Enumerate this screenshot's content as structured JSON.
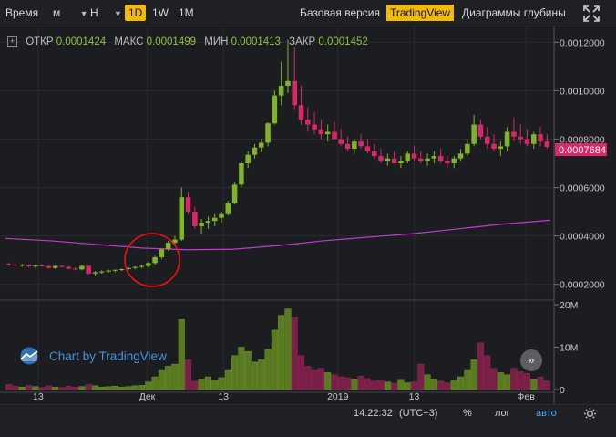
{
  "toolbar": {
    "time_label": "Время",
    "interval_min": "м",
    "interval_hour": "Н",
    "interval_1d": "1D",
    "interval_1w": "1W",
    "interval_1m": "1M",
    "basic_version": "Базовая версия",
    "tradingview": "TradingView",
    "depth_charts": "Диаграммы глубины",
    "fullscreen_icon": "fullscreen-icon"
  },
  "ohlc": {
    "open_label": "ОТКР",
    "open": "0.0001424",
    "high_label": "МАКС",
    "high": "0.0001499",
    "low_label": "МИН",
    "low": "0.0001413",
    "close_label": "ЗАКР",
    "close": "0.0001452"
  },
  "price_axis": [
    "0.0012000",
    "0.0010000",
    "0.0008000",
    "0.0006000",
    "0.0004000",
    "0.0002000"
  ],
  "last_price": "0.0007684",
  "volume_axis": [
    "20M",
    "10M",
    "0"
  ],
  "time_axis": [
    "13",
    "Дек",
    "13",
    "2019",
    "13",
    "Фев"
  ],
  "watermark": "Chart by TradingView",
  "bottombar": {
    "time": "14:22:32",
    "tz": "(UTC+3)",
    "percent": "%",
    "log": "лог",
    "auto": "авто"
  },
  "colors": {
    "up": "#7fb32a",
    "down": "#d6286a",
    "ma": "#c03ad0",
    "accent": "#f0b90b"
  },
  "chart_data": {
    "type": "candlestick",
    "ylim": [
      0.00015,
      0.00125
    ],
    "ma_series": [
      0.00039,
      0.00038,
      0.000365,
      0.00035,
      0.000343,
      0.000345,
      0.00036,
      0.00038,
      0.000395,
      0.00041,
      0.00043,
      0.00045,
      0.000465
    ],
    "candles": [
      [
        0.000285,
        0.00029,
        0.000278,
        0.000282
      ],
      [
        0.000282,
        0.000286,
        0.000276,
        0.000279
      ],
      [
        0.000279,
        0.000285,
        0.000272,
        0.000281
      ],
      [
        0.000281,
        0.000284,
        0.00027,
        0.000274
      ],
      [
        0.000274,
        0.000281,
        0.000268,
        0.000278
      ],
      [
        0.000278,
        0.000283,
        0.000273,
        0.000275
      ],
      [
        0.000275,
        0.000279,
        0.000265,
        0.000268
      ],
      [
        0.000268,
        0.000278,
        0.000263,
        0.000276
      ],
      [
        0.000276,
        0.00028,
        0.00027,
        0.000272
      ],
      [
        0.000272,
        0.000276,
        0.000262,
        0.000265
      ],
      [
        0.000265,
        0.00027,
        0.000258,
        0.000262
      ],
      [
        0.000262,
        0.00028,
        0.000258,
        0.000276
      ],
      [
        0.000276,
        0.00028,
        0.00024,
        0.000245
      ],
      [
        0.000245,
        0.000255,
        0.000236,
        0.00025
      ],
      [
        0.00025,
        0.000258,
        0.000244,
        0.000253
      ],
      [
        0.000253,
        0.000261,
        0.000248,
        0.000257
      ],
      [
        0.000257,
        0.000262,
        0.00025,
        0.00026
      ],
      [
        0.00026,
        0.000266,
        0.000255,
        0.000263
      ],
      [
        0.000263,
        0.000271,
        0.000258,
        0.000268
      ],
      [
        0.000268,
        0.000275,
        0.000262,
        0.000272
      ],
      [
        0.000272,
        0.00028,
        0.000266,
        0.000276
      ],
      [
        0.000276,
        0.000292,
        0.00027,
        0.000288
      ],
      [
        0.000288,
        0.000318,
        0.000282,
        0.000312
      ],
      [
        0.000312,
        0.00035,
        0.000305,
        0.000345
      ],
      [
        0.000345,
        0.00038,
        0.000338,
        0.000372
      ],
      [
        0.000372,
        0.0004,
        0.000362,
        0.000385
      ],
      [
        0.000385,
        0.0006,
        0.00038,
        0.00056
      ],
      [
        0.00056,
        0.00058,
        0.00049,
        0.0005
      ],
      [
        0.0005,
        0.00052,
        0.00043,
        0.00044
      ],
      [
        0.00044,
        0.00047,
        0.00041,
        0.000455
      ],
      [
        0.000455,
        0.00048,
        0.00043,
        0.000462
      ],
      [
        0.000462,
        0.00049,
        0.00044,
        0.000475
      ],
      [
        0.000475,
        0.0005,
        0.000455,
        0.00049
      ],
      [
        0.00049,
        0.000545,
        0.000485,
        0.000535
      ],
      [
        0.000535,
        0.00062,
        0.00053,
        0.000612
      ],
      [
        0.000612,
        0.00071,
        0.0006,
        0.0007
      ],
      [
        0.0007,
        0.00075,
        0.00068,
        0.000735
      ],
      [
        0.000735,
        0.00078,
        0.00072,
        0.000765
      ],
      [
        0.000765,
        0.0008,
        0.000745,
        0.000785
      ],
      [
        0.000785,
        0.00087,
        0.00077,
        0.000865
      ],
      [
        0.000865,
        0.001,
        0.00086,
        0.00098
      ],
      [
        0.00098,
        0.00112,
        0.00094,
        0.00102
      ],
      [
        0.00102,
        0.00121,
        0.00099,
        0.00104
      ],
      [
        0.00104,
        0.00118,
        0.00092,
        0.00094
      ],
      [
        0.00094,
        0.00102,
        0.00086,
        0.00088
      ],
      [
        0.00088,
        0.00093,
        0.00083,
        0.00086
      ],
      [
        0.00086,
        0.00091,
        0.00082,
        0.00084
      ],
      [
        0.00084,
        0.00088,
        0.0008,
        0.00082
      ],
      [
        0.00082,
        0.00086,
        0.00079,
        0.00083
      ],
      [
        0.00083,
        0.00087,
        0.0008,
        0.0008
      ],
      [
        0.0008,
        0.00084,
        0.00077,
        0.00078
      ],
      [
        0.00078,
        0.00081,
        0.00075,
        0.00076
      ],
      [
        0.00076,
        0.0008,
        0.00074,
        0.00079
      ],
      [
        0.00079,
        0.00082,
        0.00076,
        0.00077
      ],
      [
        0.00077,
        0.0008,
        0.00074,
        0.00075
      ],
      [
        0.00075,
        0.00078,
        0.00072,
        0.00073
      ],
      [
        0.00073,
        0.00076,
        0.0007,
        0.00071
      ],
      [
        0.00071,
        0.00074,
        0.00069,
        0.00072
      ],
      [
        0.00072,
        0.00075,
        0.0007,
        0.0007
      ],
      [
        0.0007,
        0.00073,
        0.00068,
        0.00071
      ],
      [
        0.00071,
        0.00075,
        0.0007,
        0.00074
      ],
      [
        0.00074,
        0.00077,
        0.00071,
        0.00072
      ],
      [
        0.00072,
        0.00075,
        0.0007,
        0.00071
      ],
      [
        0.00071,
        0.00074,
        0.00069,
        0.00072
      ],
      [
        0.00072,
        0.00075,
        0.0007,
        0.00073
      ],
      [
        0.00073,
        0.00076,
        0.0007,
        0.00071
      ],
      [
        0.00071,
        0.00073,
        0.00068,
        0.0007
      ],
      [
        0.0007,
        0.00073,
        0.00068,
        0.00072
      ],
      [
        0.00072,
        0.00076,
        0.00071,
        0.00074
      ],
      [
        0.00074,
        0.0008,
        0.00073,
        0.00078
      ],
      [
        0.00078,
        0.0009,
        0.00077,
        0.00086
      ],
      [
        0.00086,
        0.00088,
        0.0008,
        0.00081
      ],
      [
        0.00081,
        0.00085,
        0.00076,
        0.00078
      ],
      [
        0.00078,
        0.00082,
        0.00075,
        0.00076
      ],
      [
        0.00076,
        0.00079,
        0.00073,
        0.00077
      ],
      [
        0.00077,
        0.00085,
        0.00075,
        0.00083
      ],
      [
        0.00083,
        0.00089,
        0.00079,
        0.00081
      ],
      [
        0.00081,
        0.00086,
        0.00078,
        0.0008
      ],
      [
        0.0008,
        0.00084,
        0.00077,
        0.00078
      ],
      [
        0.00078,
        0.00083,
        0.00076,
        0.00082
      ],
      [
        0.00082,
        0.00085,
        0.00077,
        0.00079
      ],
      [
        0.00079,
        0.00082,
        0.00076,
        0.000768
      ]
    ],
    "volumes": [
      1.2,
      0.8,
      0.6,
      1.0,
      0.7,
      0.5,
      0.9,
      0.6,
      0.5,
      0.8,
      0.6,
      0.7,
      1.2,
      0.9,
      0.6,
      0.7,
      0.8,
      0.6,
      0.7,
      0.9,
      1.0,
      1.8,
      3.0,
      4.5,
      5.5,
      6.0,
      16.5,
      7.0,
      2.0,
      2.5,
      3.0,
      2.2,
      2.8,
      4.5,
      8.0,
      10.0,
      9.0,
      6.5,
      7.0,
      9.5,
      14.0,
      17.5,
      19.0,
      17.0,
      8.0,
      5.5,
      4.5,
      5.0,
      4.0,
      3.5,
      3.0,
      2.8,
      2.5,
      3.2,
      2.6,
      2.0,
      2.2,
      1.8,
      1.5,
      2.4,
      1.6,
      1.8,
      6.0,
      3.5,
      2.5,
      2.0,
      1.6,
      2.2,
      3.0,
      4.5,
      7.0,
      11.0,
      8.0,
      5.0,
      4.0,
      3.5,
      5.0,
      4.2,
      3.8,
      2.5,
      3.0,
      2.0
    ]
  }
}
